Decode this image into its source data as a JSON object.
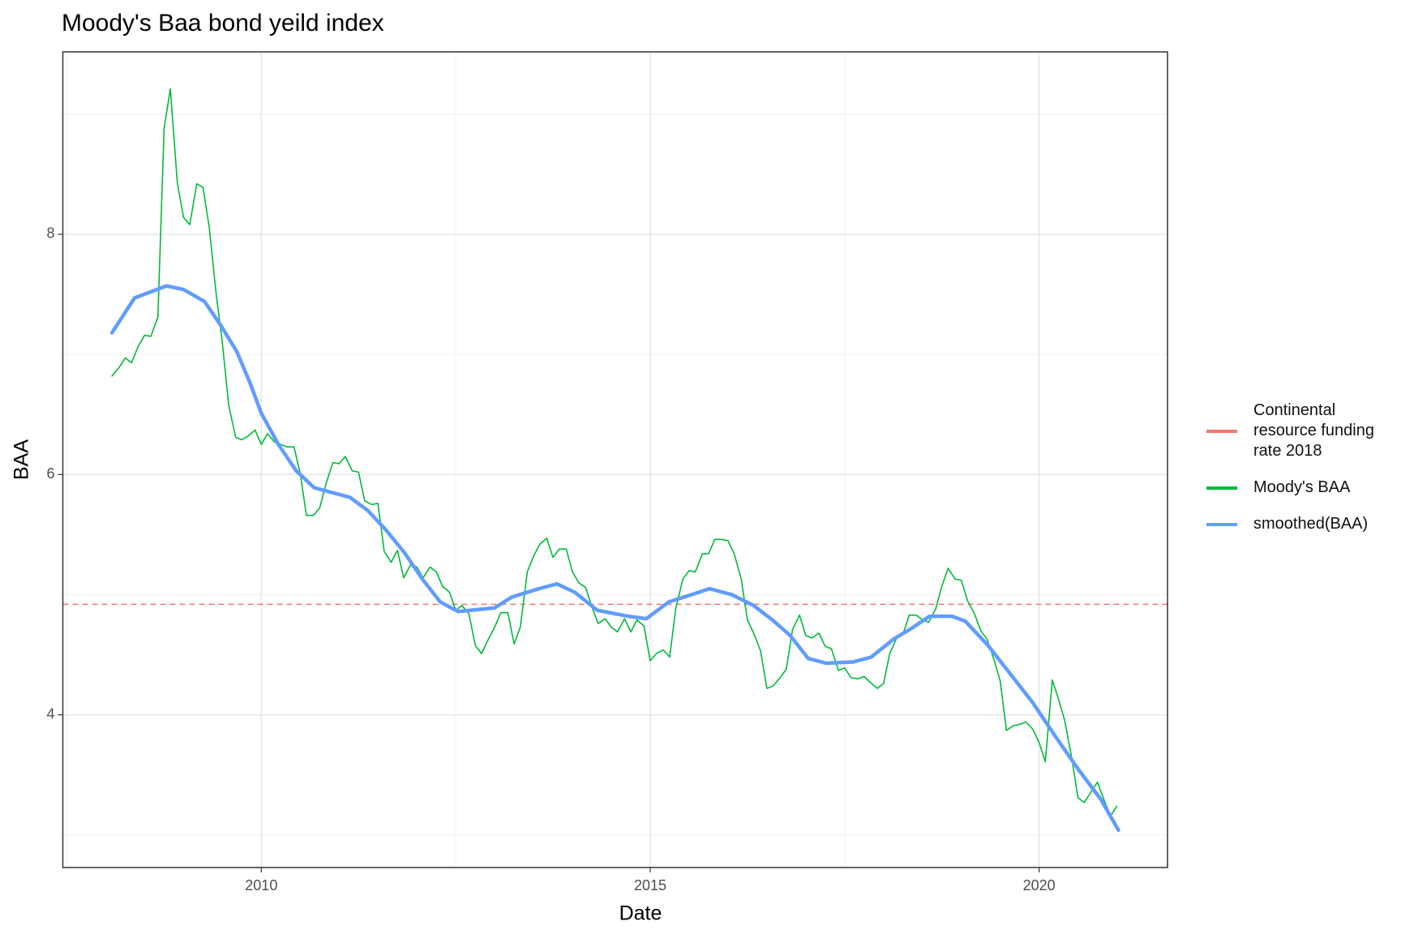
{
  "chart_data": {
    "type": "line",
    "title": "Moody's Baa bond yeild index",
    "x_label": "Date",
    "y_label": "BAA",
    "xlim": [
      2007.448,
      2021.651
    ],
    "xticks": [
      2010,
      2015,
      2020
    ],
    "x_minor_grid": [
      2007.5,
      2012.5,
      2017.5
    ],
    "ylim": [
      2.729,
      9.518
    ],
    "yticks": [
      4,
      6,
      8
    ],
    "y_minor_grid": [
      3,
      5,
      7,
      9
    ],
    "grid": true,
    "legend": "right",
    "series": [
      {
        "name": "Continental resource funding rate 2018",
        "color": "#F8766D",
        "kind": "hline",
        "dashed": true,
        "values": [
          4.92
        ]
      },
      {
        "name": "Moody's BAA",
        "color": "#00BA38",
        "kind": "line",
        "x": [
          2008.08,
          2008.17,
          2008.25,
          2008.33,
          2008.42,
          2008.5,
          2008.58,
          2008.67,
          2008.75,
          2008.83,
          2008.92,
          2009.0,
          2009.08,
          2009.17,
          2009.25,
          2009.33,
          2009.42,
          2009.5,
          2009.58,
          2009.67,
          2009.75,
          2009.83,
          2009.92,
          2010.0,
          2010.08,
          2010.17,
          2010.25,
          2010.33,
          2010.42,
          2010.5,
          2010.58,
          2010.67,
          2010.75,
          2010.83,
          2010.92,
          2011.0,
          2011.08,
          2011.17,
          2011.25,
          2011.33,
          2011.42,
          2011.5,
          2011.58,
          2011.67,
          2011.75,
          2011.83,
          2011.92,
          2012.0,
          2012.08,
          2012.17,
          2012.25,
          2012.33,
          2012.42,
          2012.5,
          2012.58,
          2012.67,
          2012.75,
          2012.83,
          2012.92,
          2013.0,
          2013.08,
          2013.17,
          2013.25,
          2013.33,
          2013.42,
          2013.5,
          2013.58,
          2013.67,
          2013.75,
          2013.83,
          2013.92,
          2014.0,
          2014.08,
          2014.17,
          2014.25,
          2014.33,
          2014.42,
          2014.5,
          2014.58,
          2014.67,
          2014.75,
          2014.83,
          2014.92,
          2015.0,
          2015.08,
          2015.17,
          2015.25,
          2015.33,
          2015.42,
          2015.5,
          2015.58,
          2015.67,
          2015.75,
          2015.83,
          2015.92,
          2016.0,
          2016.08,
          2016.17,
          2016.25,
          2016.33,
          2016.42,
          2016.5,
          2016.58,
          2016.67,
          2016.75,
          2016.83,
          2016.92,
          2017.0,
          2017.08,
          2017.17,
          2017.25,
          2017.33,
          2017.42,
          2017.5,
          2017.58,
          2017.67,
          2017.75,
          2017.83,
          2017.92,
          2018.0,
          2018.08,
          2018.17,
          2018.25,
          2018.33,
          2018.42,
          2018.5,
          2018.58,
          2018.67,
          2018.75,
          2018.83,
          2018.92,
          2019.0,
          2019.08,
          2019.17,
          2019.25,
          2019.33,
          2019.42,
          2019.5,
          2019.58,
          2019.67,
          2019.75,
          2019.83,
          2019.92,
          2020.0,
          2020.08,
          2020.17,
          2020.25,
          2020.33,
          2020.42,
          2020.5,
          2020.58,
          2020.67,
          2020.75,
          2020.83,
          2020.92,
          2021.0
        ],
        "values": [
          6.82,
          6.89,
          6.97,
          6.93,
          7.07,
          7.16,
          7.15,
          7.31,
          8.88,
          9.21,
          8.43,
          8.14,
          8.08,
          8.42,
          8.39,
          8.06,
          7.5,
          7.09,
          6.58,
          6.31,
          6.29,
          6.32,
          6.37,
          6.25,
          6.34,
          6.27,
          6.25,
          6.23,
          6.23,
          6.01,
          5.66,
          5.66,
          5.72,
          5.92,
          6.1,
          6.09,
          6.15,
          6.03,
          6.02,
          5.78,
          5.75,
          5.76,
          5.36,
          5.27,
          5.37,
          5.14,
          5.25,
          5.23,
          5.14,
          5.23,
          5.19,
          5.07,
          5.02,
          4.87,
          4.91,
          4.84,
          4.58,
          4.51,
          4.63,
          4.73,
          4.85,
          4.85,
          4.59,
          4.73,
          5.19,
          5.32,
          5.42,
          5.47,
          5.31,
          5.38,
          5.38,
          5.19,
          5.1,
          5.06,
          4.9,
          4.76,
          4.8,
          4.73,
          4.69,
          4.8,
          4.69,
          4.79,
          4.74,
          4.45,
          4.51,
          4.54,
          4.48,
          4.89,
          5.13,
          5.2,
          5.19,
          5.34,
          5.34,
          5.46,
          5.46,
          5.45,
          5.34,
          5.13,
          4.79,
          4.68,
          4.53,
          4.22,
          4.24,
          4.31,
          4.38,
          4.71,
          4.83,
          4.66,
          4.64,
          4.68,
          4.57,
          4.55,
          4.37,
          4.39,
          4.31,
          4.3,
          4.32,
          4.27,
          4.22,
          4.26,
          4.51,
          4.64,
          4.67,
          4.83,
          4.83,
          4.79,
          4.77,
          4.88,
          5.07,
          5.22,
          5.13,
          5.12,
          4.95,
          4.84,
          4.7,
          4.63,
          4.46,
          4.28,
          3.87,
          3.91,
          3.92,
          3.94,
          3.88,
          3.77,
          3.61,
          4.29,
          4.13,
          3.95,
          3.64,
          3.31,
          3.27,
          3.36,
          3.44,
          3.3,
          3.16,
          3.24
        ]
      },
      {
        "name": "smoothed(BAA)",
        "color": "#619CFF",
        "kind": "line",
        "x": [
          2008.08,
          2008.37,
          2008.78,
          2009.0,
          2009.27,
          2009.47,
          2009.68,
          2009.85,
          2010.0,
          2010.22,
          2010.45,
          2010.68,
          2010.91,
          2011.14,
          2011.37,
          2011.6,
          2011.84,
          2012.07,
          2012.3,
          2012.53,
          2013.0,
          2013.22,
          2013.57,
          2013.8,
          2014.03,
          2014.32,
          2014.72,
          2014.95,
          2015.24,
          2015.53,
          2015.76,
          2016.05,
          2016.33,
          2016.57,
          2016.8,
          2017.03,
          2017.26,
          2017.61,
          2017.84,
          2018.13,
          2018.36,
          2018.59,
          2018.88,
          2019.05,
          2019.34,
          2019.63,
          2019.92,
          2020.21,
          2020.5,
          2020.79,
          2021.02
        ],
        "values": [
          7.18,
          7.47,
          7.57,
          7.54,
          7.44,
          7.25,
          7.03,
          6.77,
          6.51,
          6.25,
          6.03,
          5.89,
          5.85,
          5.81,
          5.7,
          5.54,
          5.35,
          5.13,
          4.94,
          4.86,
          4.89,
          4.98,
          5.05,
          5.09,
          5.02,
          4.87,
          4.82,
          4.8,
          4.94,
          5.0,
          5.05,
          5.0,
          4.91,
          4.79,
          4.66,
          4.47,
          4.43,
          4.44,
          4.48,
          4.63,
          4.72,
          4.82,
          4.82,
          4.78,
          4.58,
          4.34,
          4.1,
          3.82,
          3.55,
          3.3,
          3.04
        ]
      }
    ]
  }
}
